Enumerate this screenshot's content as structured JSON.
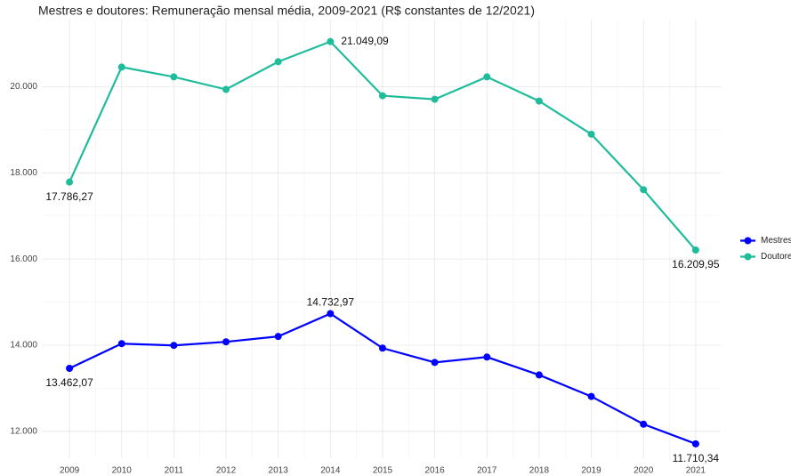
{
  "chart_data": {
    "type": "line",
    "title": "Mestres e doutores: Remuneração mensal média, 2009-2021 (R$ constantes de 12/2021)",
    "x": [
      2009,
      2010,
      2011,
      2012,
      2013,
      2014,
      2015,
      2016,
      2017,
      2018,
      2019,
      2020,
      2021
    ],
    "series": [
      {
        "name": "Mestres",
        "color": "#0000ff",
        "values": [
          13462.07,
          14036,
          13995,
          14078,
          14203,
          14732.97,
          13932,
          13600,
          13725,
          13309,
          12810,
          12166,
          11710.34
        ],
        "value_labels": [
          "13.462,07",
          null,
          null,
          null,
          null,
          "14.732,97",
          null,
          null,
          null,
          null,
          null,
          null,
          "11.710,34"
        ]
      },
      {
        "name": "Doutores",
        "color": "#1fbc9c",
        "values": [
          17786.27,
          20457,
          20229,
          19938,
          20582,
          21049.09,
          19792,
          19709,
          20229,
          19668,
          18899,
          17610,
          16209.95
        ],
        "value_labels": [
          "17.786,27",
          null,
          null,
          null,
          null,
          "21.049,09",
          null,
          null,
          null,
          null,
          null,
          null,
          "16.209,95"
        ]
      }
    ],
    "xlim": [
      2008.47,
      2021.48
    ],
    "xticks": [
      2009,
      2010,
      2011,
      2012,
      2013,
      2014,
      2015,
      2016,
      2017,
      2018,
      2019,
      2020,
      2021
    ],
    "ylim": [
      11376,
      21560
    ],
    "yticks": [
      {
        "value": 12000,
        "label": "12.000"
      },
      {
        "value": 14000,
        "label": "14.000"
      },
      {
        "value": 16000,
        "label": "16.000"
      },
      {
        "value": 18000,
        "label": "18.000"
      },
      {
        "value": 20000,
        "label": "20.000"
      }
    ],
    "grid": true,
    "legend": "right"
  }
}
